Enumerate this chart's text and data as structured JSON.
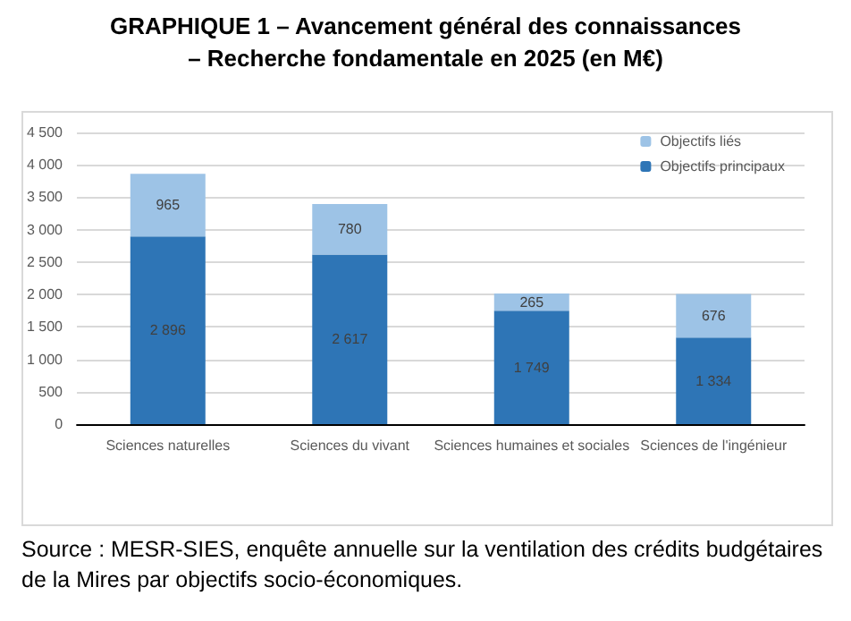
{
  "chart_data": {
    "type": "bar",
    "stacked": true,
    "title": "GRAPHIQUE 1 – Avancement général des connaissances – Recherche fondamentale en 2025 (en M€)",
    "categories": [
      "Sciences naturelles",
      "Sciences du vivant",
      "Sciences humaines et sociales",
      "Sciences de l'ingénieur"
    ],
    "series": [
      {
        "name": "Objectifs principaux",
        "color": "#2e75b6",
        "values": [
          2896,
          2617,
          1749,
          1334
        ],
        "value_labels": [
          "2 896",
          "2 617",
          "1 749",
          "1 334"
        ]
      },
      {
        "name": "Objectifs liés",
        "color": "#9dc3e6",
        "values": [
          965,
          780,
          265,
          676
        ],
        "value_labels": [
          "965",
          "780",
          "265",
          "676"
        ]
      }
    ],
    "ylim": [
      0,
      4500
    ],
    "yticks": [
      {
        "value": 0,
        "label": "0"
      },
      {
        "value": 500,
        "label": "500"
      },
      {
        "value": 1000,
        "label": "1 000"
      },
      {
        "value": 1500,
        "label": "1 500"
      },
      {
        "value": 2000,
        "label": "2 000"
      },
      {
        "value": 2500,
        "label": "2 500"
      },
      {
        "value": 3000,
        "label": "3 000"
      },
      {
        "value": 3500,
        "label": "3 500"
      },
      {
        "value": 4000,
        "label": "4 000"
      },
      {
        "value": 4500,
        "label": "4 500"
      }
    ],
    "grid": "y",
    "legend": "top right",
    "annotations": [
      "Source : MESR-SIES, enquête annuelle sur la ventilation des crédits budgétaires de la Mires par objectifs socio-économiques."
    ]
  }
}
